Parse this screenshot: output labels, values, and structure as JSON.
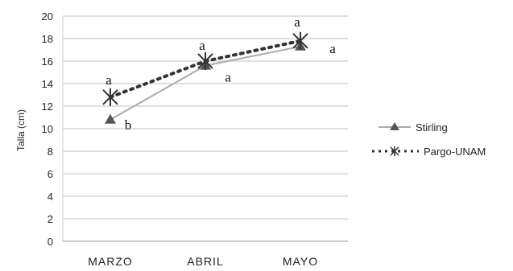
{
  "chart_data": {
    "type": "line",
    "categories": [
      "MARZO",
      "ABRIL",
      "MAYO"
    ],
    "ylabel": "Talla (cm)",
    "ylim": [
      0,
      20
    ],
    "ytick_step": 2,
    "grid": true,
    "legend_position": "right",
    "series": [
      {
        "name": "Stirling",
        "values": [
          10.8,
          15.6,
          17.3
        ],
        "labels": [
          "b",
          "a",
          "a"
        ],
        "color": "#aaaaaa",
        "marker": "triangle",
        "line": "solid"
      },
      {
        "name": "Pargo-UNAM",
        "values": [
          12.8,
          16.0,
          17.8
        ],
        "labels": [
          "a",
          "a",
          "a"
        ],
        "color": "#333333",
        "marker": "asterisk",
        "line": "dotted"
      }
    ],
    "legend_labels": [
      "Stirling",
      "Pargo-UNAM"
    ]
  }
}
